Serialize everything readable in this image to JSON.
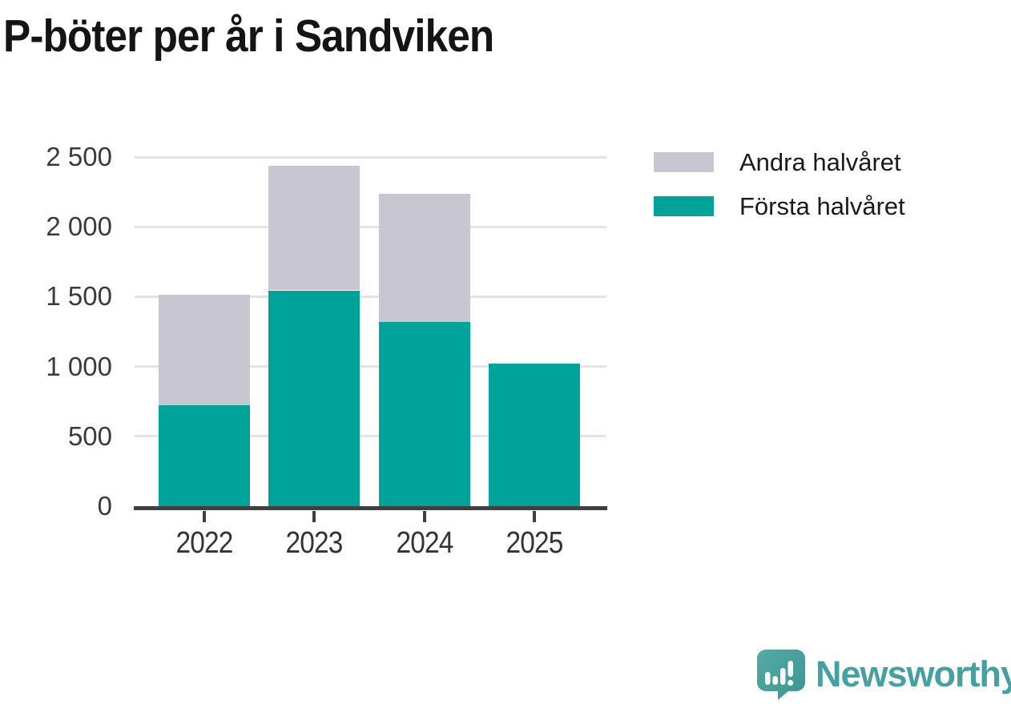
{
  "title": "P-böter per år i Sandviken",
  "chart_data": {
    "type": "bar",
    "stacked": true,
    "title": "P-böter per år i Sandviken",
    "categories": [
      "2022",
      "2023",
      "2024",
      "2025"
    ],
    "series": [
      {
        "name": "Första halvåret",
        "color": "#00a399",
        "values": [
          725,
          1545,
          1320,
          1020
        ]
      },
      {
        "name": "Andra halvåret",
        "color": "#c8c6d0",
        "values": [
          790,
          890,
          915,
          null
        ]
      }
    ],
    "totals": [
      1515,
      2435,
      2235,
      1020
    ],
    "xlabel": "",
    "ylabel": "",
    "ylim": [
      0,
      2500
    ],
    "ytick_interval": 500,
    "ytick_labels": [
      "0",
      "500",
      "1 000",
      "1 500",
      "2 000",
      "2 500"
    ],
    "grid": true,
    "legend_position": "top-right"
  },
  "legend": {
    "items": [
      {
        "label": "Andra halvåret",
        "color": "#c8c6d0"
      },
      {
        "label": "Första halvåret",
        "color": "#00a399"
      }
    ]
  },
  "footer": {
    "brand": "Newsworthy"
  },
  "colors": {
    "bar_teal": "#00a399",
    "bar_gray": "#c8c6d0",
    "gridline": "#e4e3e6",
    "axis": "#3f3f3f",
    "title_text": "#141414",
    "axis_text": "#3a3a3a",
    "brand_teal": "#45a0a0"
  }
}
